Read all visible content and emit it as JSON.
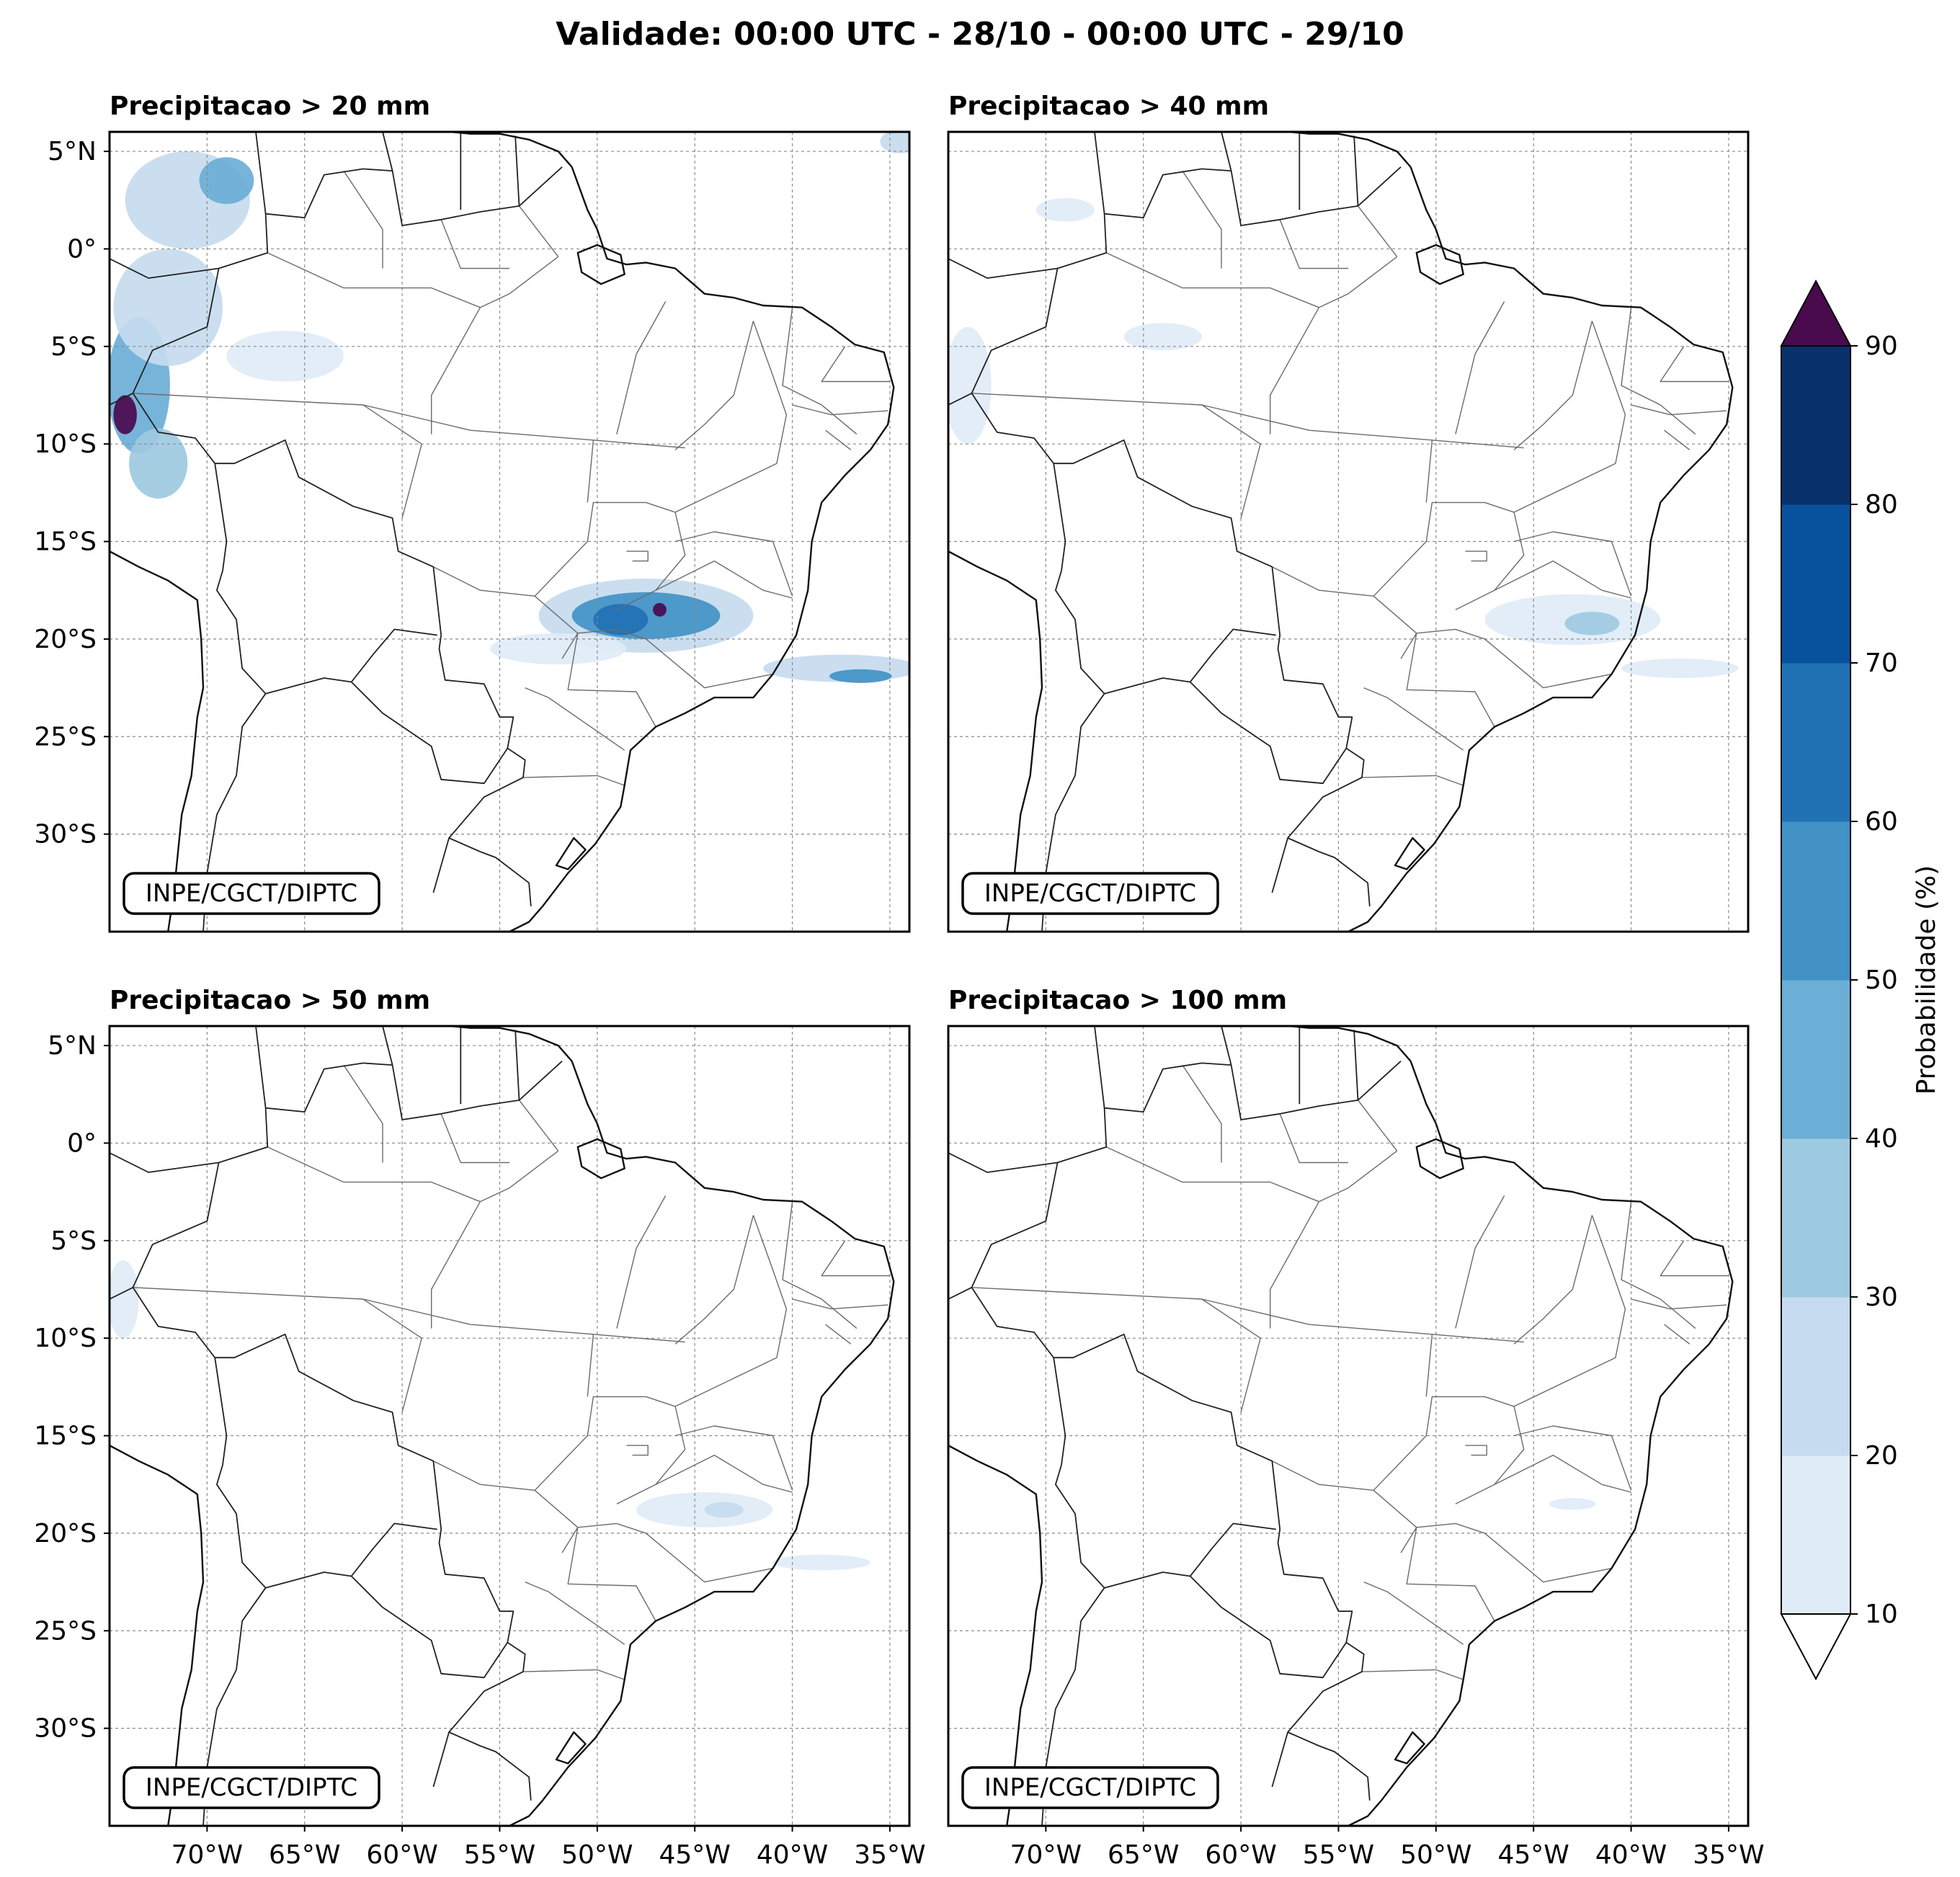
{
  "title": "Validade: 00:00 UTC - 28/10 - 00:00 UTC - 29/10",
  "credit": "INPE/CGCT/DIPTC",
  "panels": [
    {
      "id": "p20",
      "title": "Precipitacao > 20 mm",
      "show_y_labels": true,
      "show_x_labels": false
    },
    {
      "id": "p40",
      "title": "Precipitacao > 40 mm",
      "show_y_labels": false,
      "show_x_labels": false
    },
    {
      "id": "p50",
      "title": "Precipitacao > 50 mm",
      "show_y_labels": true,
      "show_x_labels": true
    },
    {
      "id": "p100",
      "title": "Precipitacao > 100 mm",
      "show_y_labels": false,
      "show_x_labels": true
    }
  ],
  "map_extent": {
    "lon_min": -75,
    "lon_max": -34,
    "lat_min": -35,
    "lat_max": 6
  },
  "lat_ticks": [
    {
      "value": 5,
      "label": "5°N"
    },
    {
      "value": 0,
      "label": "0°"
    },
    {
      "value": -5,
      "label": "5°S"
    },
    {
      "value": -10,
      "label": "10°S"
    },
    {
      "value": -15,
      "label": "15°S"
    },
    {
      "value": -20,
      "label": "20°S"
    },
    {
      "value": -25,
      "label": "25°S"
    },
    {
      "value": -30,
      "label": "30°S"
    }
  ],
  "lon_ticks": [
    {
      "value": -70,
      "label": "70°W"
    },
    {
      "value": -65,
      "label": "65°W"
    },
    {
      "value": -60,
      "label": "60°W"
    },
    {
      "value": -55,
      "label": "55°W"
    },
    {
      "value": -50,
      "label": "50°W"
    },
    {
      "value": -45,
      "label": "45°W"
    },
    {
      "value": -40,
      "label": "40°W"
    },
    {
      "value": -35,
      "label": "35°W"
    }
  ],
  "colorbar": {
    "label": "Probabilidade (%)",
    "levels": [
      10,
      20,
      30,
      40,
      50,
      60,
      70,
      80,
      90
    ],
    "tick_labels": [
      "10",
      "20",
      "30",
      "40",
      "50",
      "60",
      "70",
      "80",
      "90"
    ],
    "colors": [
      "#dfebf7",
      "#c6dbef",
      "#9ecae1",
      "#6baed6",
      "#4292c6",
      "#2171b5",
      "#08519c",
      "#08306b"
    ],
    "under_color": "#ffffff",
    "over_color": "#4a0a4e"
  },
  "precip_features": {
    "p20": [
      {
        "lon": -73.5,
        "lat": -7,
        "rx": 1.6,
        "ry": 3.5,
        "level": 4
      },
      {
        "lon": -74.2,
        "lat": -8.5,
        "rx": 0.6,
        "ry": 1,
        "level": 8
      },
      {
        "lon": -72,
        "lat": -3,
        "rx": 2.8,
        "ry": 3,
        "level": 2
      },
      {
        "lon": -71,
        "lat": 2.5,
        "rx": 3.2,
        "ry": 2.5,
        "level": 2
      },
      {
        "lon": -69,
        "lat": 3.5,
        "rx": 1.4,
        "ry": 1.2,
        "level": 4
      },
      {
        "lon": -72.5,
        "lat": -11,
        "rx": 1.5,
        "ry": 1.8,
        "level": 3
      },
      {
        "lon": -66,
        "lat": -5.5,
        "rx": 3,
        "ry": 1.3,
        "level": 1
      },
      {
        "lon": -47.5,
        "lat": -18.8,
        "rx": 5.5,
        "ry": 1.9,
        "level": 2
      },
      {
        "lon": -47.5,
        "lat": -18.8,
        "rx": 3.8,
        "ry": 1.2,
        "level": 5
      },
      {
        "lon": -48.8,
        "lat": -19,
        "rx": 1.4,
        "ry": 0.8,
        "level": 6
      },
      {
        "lon": -46.8,
        "lat": -18.5,
        "rx": 0.35,
        "ry": 0.35,
        "level": 8
      },
      {
        "lon": -52,
        "lat": -20.5,
        "rx": 3.5,
        "ry": 0.8,
        "level": 1
      },
      {
        "lon": -37.5,
        "lat": -21.5,
        "rx": 4,
        "ry": 0.7,
        "level": 2
      },
      {
        "lon": -36.5,
        "lat": -21.9,
        "rx": 1.6,
        "ry": 0.35,
        "level": 5
      },
      {
        "lon": -34.5,
        "lat": 5.5,
        "rx": 1,
        "ry": 0.6,
        "level": 2
      }
    ],
    "p40": [
      {
        "lon": -74,
        "lat": -7,
        "rx": 1.2,
        "ry": 3,
        "level": 1
      },
      {
        "lon": -69,
        "lat": 2,
        "rx": 1.5,
        "ry": 0.6,
        "level": 1
      },
      {
        "lon": -64,
        "lat": -4.5,
        "rx": 2,
        "ry": 0.7,
        "level": 1
      },
      {
        "lon": -43,
        "lat": -19,
        "rx": 4.5,
        "ry": 1.3,
        "level": 1
      },
      {
        "lon": -42,
        "lat": -19.2,
        "rx": 1.4,
        "ry": 0.6,
        "level": 3
      },
      {
        "lon": -37.5,
        "lat": -21.5,
        "rx": 3,
        "ry": 0.5,
        "level": 1
      }
    ],
    "p50": [
      {
        "lon": -74.3,
        "lat": -8,
        "rx": 0.8,
        "ry": 2,
        "level": 1
      },
      {
        "lon": -44.5,
        "lat": -18.8,
        "rx": 3.5,
        "ry": 0.9,
        "level": 1
      },
      {
        "lon": -43.5,
        "lat": -18.8,
        "rx": 1,
        "ry": 0.4,
        "level": 2
      },
      {
        "lon": -38.5,
        "lat": -21.5,
        "rx": 2.5,
        "ry": 0.4,
        "level": 1
      }
    ],
    "p100": [
      {
        "lon": -43,
        "lat": -18.5,
        "rx": 1.2,
        "ry": 0.3,
        "level": 1
      }
    ]
  }
}
